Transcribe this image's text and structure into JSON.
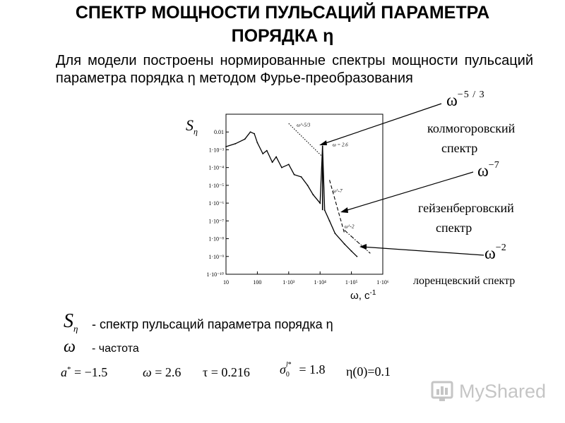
{
  "title_line1": "СПЕКТР МОЩНОСТИ ПУЛЬСАЦИЙ ПАРАМЕТРА",
  "title_line2": "ПОРЯДКА η",
  "intro": "Для модели построены нормированные спектры мощности пульсаций параметра порядка η методом Фурье-преобразования",
  "chart_ylabel": "S_η",
  "chart_xlabel": "ω, с",
  "chart_xlabel_sup": "-1",
  "annotations": {
    "kolmogorov_exponent": "ω^-5/3",
    "kolmogorov_label_1": "колмогоровский",
    "kolmogorov_label_2": "спектр",
    "heisenberg_exponent": "ω^-7",
    "heisenberg_label_1": "гейзенберговский",
    "heisenberg_label_2": "спектр",
    "lorentz_exponent": "ω^-2",
    "lorentz_label": "лоренцевский спектр",
    "omega_base": "ω",
    "exp_53": "−5 / 3",
    "exp_7": "−7",
    "exp_2": "−2"
  },
  "definitions": {
    "s_symbol": "S",
    "s_subscript": "η",
    "s_text": "- спектр пульсаций параметра порядка η",
    "omega_symbol": "ω",
    "omega_text": "- частота"
  },
  "params": {
    "a": "a* = −1.5",
    "a_display": "= −1.5",
    "omega": "ω = 2.6",
    "omega_display": "= 2.6",
    "tau": "τ = 0.216",
    "tau_display": "τ = 0.216",
    "sigma": "σ0l* = 1.8",
    "sigma_display": "= 1.8",
    "eta0": "η(0)=0.1"
  },
  "logo_text": "MyShared",
  "chart_data": {
    "type": "line",
    "title": "",
    "xlabel": "ω, с-1",
    "ylabel": "Sη",
    "x_scale": "log",
    "y_scale": "log",
    "xlim": [
      10,
      1000000
    ],
    "ylim": [
      1e-10,
      0.1
    ],
    "x_ticks": [
      "10",
      "100",
      "1·10³",
      "1·10⁴",
      "1·10⁵",
      "1·10⁶"
    ],
    "y_ticks": [
      "0.01",
      "1·10⁻³",
      "1·10⁻⁴",
      "1·10⁻⁵",
      "1·10⁻⁶",
      "1·10⁻⁷",
      "1·10⁻⁸",
      "1·10⁻⁹",
      "1·10⁻¹⁰"
    ],
    "grid": false,
    "series": [
      {
        "values": [
          [
            10,
            0.0015
          ],
          [
            20,
            0.0022
          ],
          [
            40,
            0.004
          ],
          [
            60,
            0.01
          ],
          [
            80,
            0.008
          ],
          [
            100,
            0.0025
          ],
          [
            150,
            0.0006
          ],
          [
            200,
            0.0009
          ],
          [
            300,
            0.0002
          ],
          [
            400,
            0.0004
          ],
          [
            600,
            0.0001
          ],
          [
            1000,
            0.00015
          ],
          [
            1500,
            4e-05
          ],
          [
            2500,
            3e-05
          ],
          [
            4000,
            1e-05
          ],
          [
            6000,
            3e-06
          ],
          [
            10000,
            1e-06
          ],
          [
            12000,
            0.0016
          ],
          [
            14000,
            4e-07
          ],
          [
            20000,
            1e-07
          ],
          [
            30000,
            2e-08
          ],
          [
            60000,
            5e-09
          ],
          [
            100000,
            2e-09
          ],
          [
            150000,
            1e-09
          ]
        ]
      }
    ],
    "reference_lines": [
      {
        "label": "ω^-5/3",
        "style": "dotted",
        "x": [
          1000,
          12000
        ],
        "y": [
          0.03,
          0.0004
        ]
      },
      {
        "label": "ω = 2.6",
        "style": "solid",
        "x": [
          12000,
          12000
        ],
        "y": [
          4e-07,
          0.0016
        ]
      },
      {
        "label": "ω^-7",
        "style": "dashed",
        "x": [
          20000,
          60000
        ],
        "y": [
          2e-05,
          2e-08
        ]
      },
      {
        "label": "ω^-2",
        "style": "dash-dot",
        "x": [
          60000,
          400000
        ],
        "y": [
          3e-08,
          1.5e-09
        ]
      }
    ],
    "annotations": [
      "ω^-5/3",
      "ω = 2.6",
      "ω^-7",
      "ω^-2"
    ]
  }
}
